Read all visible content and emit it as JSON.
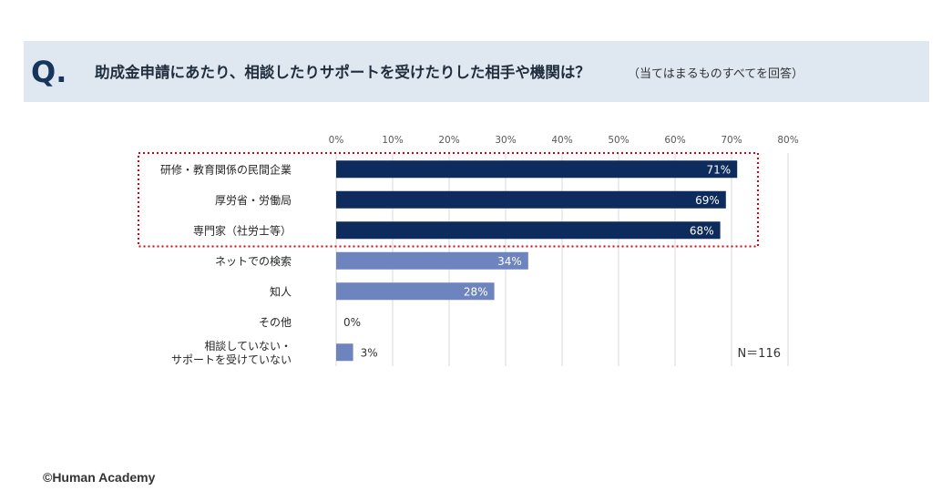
{
  "header": {
    "q_mark": "Q.",
    "question": "助成金申請にあたり、相談したりサポートを受けたりした相手や機関は？",
    "note": "（当てはまるものすべてを回答）"
  },
  "chart_data": {
    "type": "bar",
    "orientation": "horizontal",
    "categories": [
      [
        "研修・教育関係の民間企業"
      ],
      [
        "厚労省・労働局"
      ],
      [
        "専門家（社労士等）"
      ],
      [
        "ネットでの検索"
      ],
      [
        "知人"
      ],
      [
        "その他"
      ],
      [
        "相談していない・",
        "サポートを受けていない"
      ]
    ],
    "values": [
      71,
      69,
      68,
      34,
      28,
      0,
      3
    ],
    "value_labels": [
      "71%",
      "69%",
      "68%",
      "34%",
      "28%",
      "0%",
      "3%"
    ],
    "x_ticks": [
      "0%",
      "10%",
      "20%",
      "30%",
      "40%",
      "50%",
      "60%",
      "70%",
      "80%"
    ],
    "xlim": [
      0,
      80
    ],
    "grid": true,
    "highlight_top": 3,
    "colors": {
      "highlight": "#0d2b5c",
      "normal": "#6d84bf",
      "grid": "#d9d9d9",
      "frame": "#e0000f"
    },
    "sample_size": "N＝116"
  },
  "footer": {
    "copyright": "©Human Academy"
  }
}
